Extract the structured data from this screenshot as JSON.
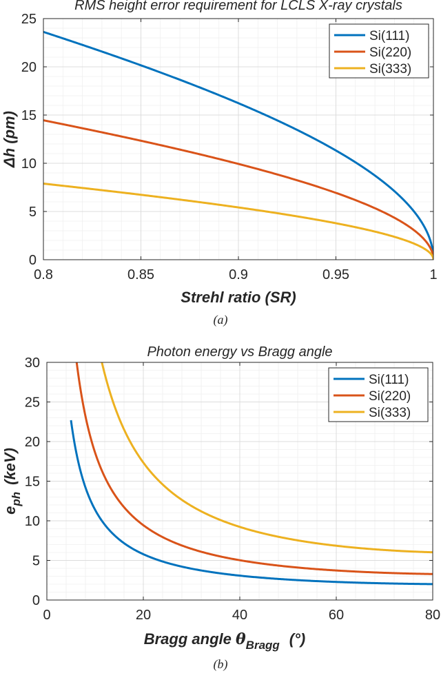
{
  "colors": {
    "si111": "#0072BD",
    "si220": "#D95319",
    "si333": "#EDB120",
    "axis": "#262626",
    "grid": "#DCDCDC",
    "gridMinor": "#EFEFEF"
  },
  "chart_data": [
    {
      "type": "line",
      "title": "RMS height error requirement for LCLS X-ray crystals",
      "xlabel": "Strehl ratio (SR)",
      "ylabel": "Δh (pm)",
      "xlim": [
        0.8,
        1
      ],
      "ylim": [
        0,
        25
      ],
      "xticks": [
        0.8,
        0.85,
        0.9,
        0.95,
        1
      ],
      "xtick_labels": [
        "0.8",
        "0.85",
        "0.9",
        "0.95",
        "1"
      ],
      "yticks": [
        0,
        5,
        10,
        15,
        20,
        25
      ],
      "ytick_labels": [
        "0",
        "5",
        "10",
        "15",
        "20",
        "25"
      ],
      "grid": true,
      "legend_position": "top-right",
      "caption": "(a)",
      "series": [
        {
          "name": "Si(111)",
          "model": "k*sqrt(-ln(SR))",
          "k": 50.0,
          "x": [
            0.8,
            0.85,
            0.9,
            0.95,
            0.99,
            1.0
          ],
          "y": [
            23.6,
            20.2,
            16.2,
            11.3,
            5.0,
            0.0
          ]
        },
        {
          "name": "Si(220)",
          "model": "k*sqrt(-ln(SR))",
          "k": 30.6,
          "x": [
            0.8,
            0.85,
            0.9,
            0.95,
            0.99,
            1.0
          ],
          "y": [
            14.5,
            12.4,
            9.9,
            6.9,
            3.1,
            0.0
          ]
        },
        {
          "name": "Si(333)",
          "model": "k*sqrt(-ln(SR))",
          "k": 16.7,
          "x": [
            0.8,
            0.85,
            0.9,
            0.95,
            0.99,
            1.0
          ],
          "y": [
            7.9,
            6.8,
            5.4,
            3.8,
            1.7,
            0.0
          ]
        }
      ]
    },
    {
      "type": "line",
      "title": "Photon energy vs Bragg angle",
      "xlabel": "Bragg angle θBragg (°)",
      "xlabel_main": "Bragg angle ",
      "xlabel_symbol": "θ",
      "xlabel_sub": "Bragg",
      "xlabel_unit": "(°)",
      "ylabel": "eph (keV)",
      "ylabel_main": "e",
      "ylabel_sub": "ph",
      "ylabel_unit": "(keV)",
      "xlim": [
        0,
        80
      ],
      "ylim": [
        0,
        30
      ],
      "xticks": [
        0,
        20,
        40,
        60,
        80
      ],
      "xtick_labels": [
        "0",
        "20",
        "40",
        "60",
        "80"
      ],
      "yticks": [
        0,
        5,
        10,
        15,
        20,
        25,
        30
      ],
      "ytick_labels": [
        "0",
        "5",
        "10",
        "15",
        "20",
        "25",
        "30"
      ],
      "grid": true,
      "legend_position": "top-right",
      "caption": "(b)",
      "series": [
        {
          "name": "Si(111)",
          "model": "c/sin(theta)",
          "c": 1.978,
          "theta_range": [
            5,
            80
          ],
          "x": [
            5,
            10,
            20,
            40,
            60,
            80
          ],
          "y": [
            22.7,
            11.4,
            5.8,
            3.1,
            2.3,
            2.0
          ]
        },
        {
          "name": "Si(220)",
          "model": "c/sin(theta)",
          "c": 3.23,
          "theta_range": [
            5,
            80
          ],
          "x": [
            6.2,
            10,
            20,
            40,
            60,
            80
          ],
          "y": [
            30.0,
            18.6,
            9.4,
            5.0,
            3.7,
            3.3
          ]
        },
        {
          "name": "Si(333)",
          "model": "c/sin(theta)",
          "c": 5.933,
          "theta_range": [
            5,
            80
          ],
          "x": [
            11.4,
            20,
            40,
            60,
            80
          ],
          "y": [
            30.0,
            17.3,
            9.2,
            6.9,
            6.0
          ]
        }
      ]
    }
  ]
}
